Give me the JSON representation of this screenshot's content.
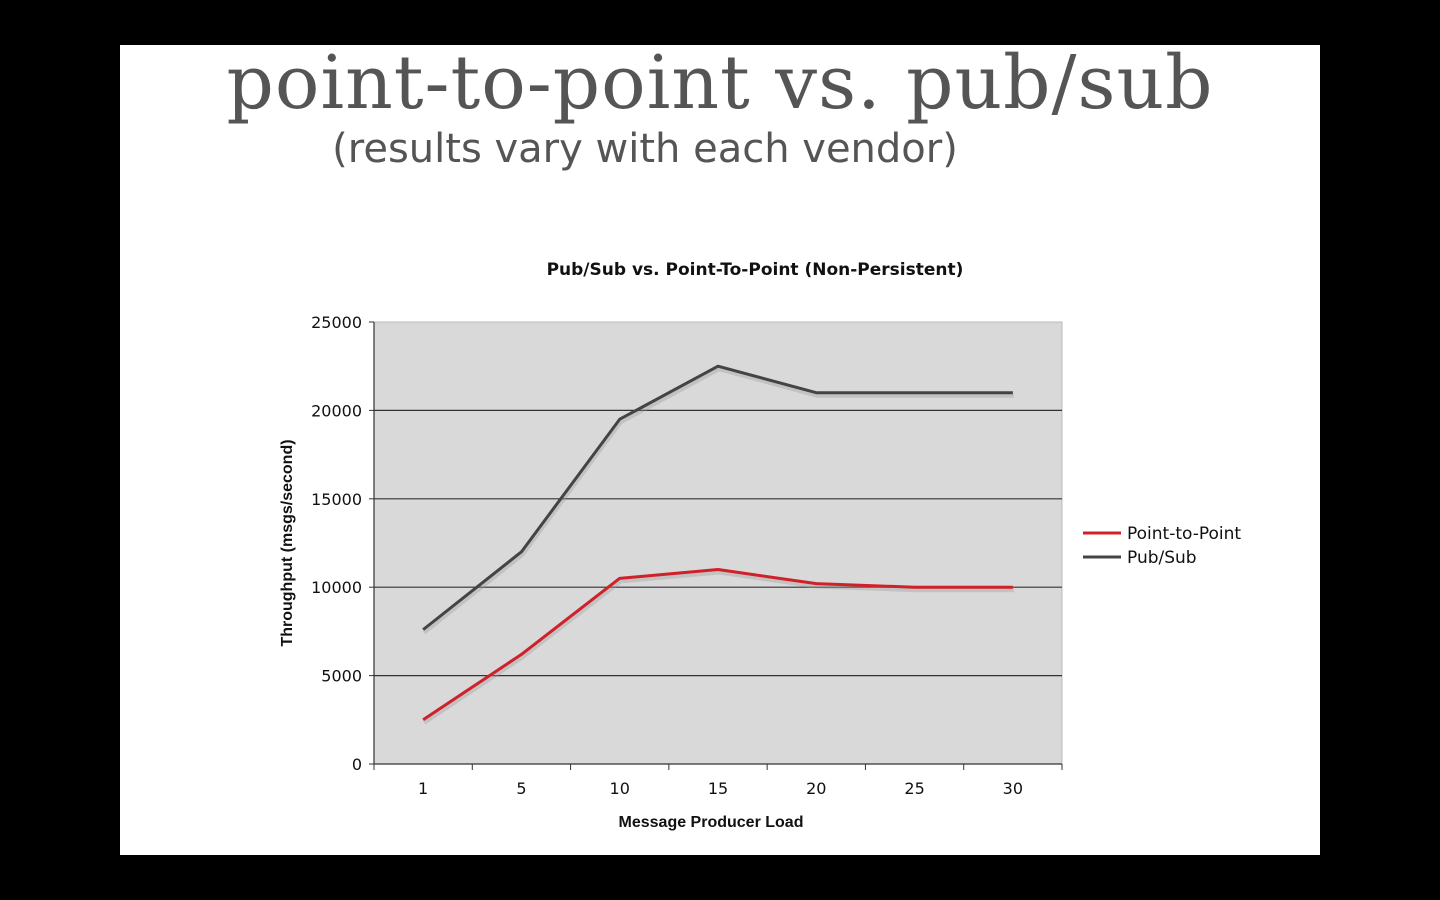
{
  "slide": {
    "title": "point-to-point vs. pub/sub",
    "subtitle": "(results vary with each vendor)"
  },
  "chart_data": {
    "type": "line",
    "title": "Pub/Sub vs. Point-To-Point (Non-Persistent)",
    "xlabel": "Message Producer Load",
    "ylabel": "Throughput (msgs/second)",
    "categories": [
      "1",
      "5",
      "10",
      "15",
      "20",
      "25",
      "30"
    ],
    "ylim": [
      0,
      25000
    ],
    "yticks": [
      0,
      5000,
      10000,
      15000,
      20000,
      25000
    ],
    "grid": true,
    "legend": "right",
    "series": [
      {
        "name": "Point-to-Point",
        "color": "#d0202a",
        "values": [
          2500,
          6200,
          10500,
          11000,
          10200,
          10000,
          10000
        ]
      },
      {
        "name": "Pub/Sub",
        "color": "#444444",
        "values": [
          7600,
          12000,
          19500,
          22500,
          21000,
          21000,
          21000
        ]
      }
    ],
    "plot_background": "#d9d9d9"
  }
}
